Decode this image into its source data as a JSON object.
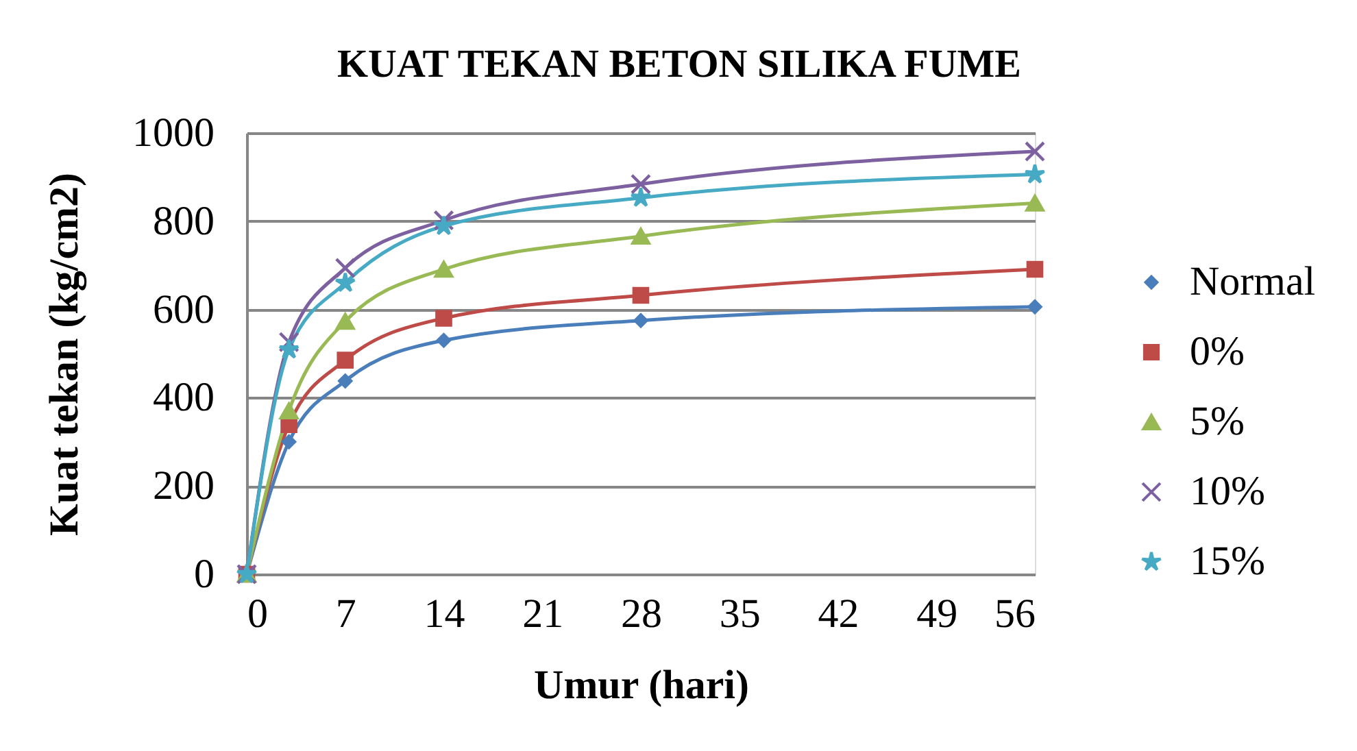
{
  "chart_data": {
    "type": "line",
    "title": "KUAT TEKAN BETON SILIKA FUME",
    "xlabel": "Umur (hari)",
    "ylabel": "Kuat tekan (kg/cm2)",
    "x": [
      0,
      3,
      7,
      14,
      28,
      56
    ],
    "xlim": [
      0,
      56
    ],
    "xticks": [
      0,
      7,
      14,
      21,
      28,
      35,
      42,
      49,
      56
    ],
    "ylim": [
      0,
      1000
    ],
    "yticks": [
      0,
      200,
      400,
      600,
      800,
      1000
    ],
    "grid": "y",
    "legend": "right",
    "line_style": "solid",
    "series": [
      {
        "name": "Normal",
        "color": "#4a7ebb",
        "marker": "diamond",
        "values": [
          0,
          300,
          438,
          530,
          575,
          606
        ]
      },
      {
        "name": "0%",
        "color": "#be4b48",
        "marker": "square",
        "values": [
          0,
          339,
          485,
          580,
          632,
          691
        ]
      },
      {
        "name": "5%",
        "color": "#98b954",
        "marker": "triangle",
        "values": [
          0,
          370,
          573,
          691,
          766,
          841
        ]
      },
      {
        "name": "10%",
        "color": "#7d60a0",
        "marker": "cross",
        "values": [
          0,
          526,
          694,
          802,
          884,
          958
        ]
      },
      {
        "name": "15%",
        "color": "#46aac5",
        "marker": "star",
        "values": [
          0,
          509,
          660,
          789,
          853,
          906
        ]
      }
    ]
  }
}
